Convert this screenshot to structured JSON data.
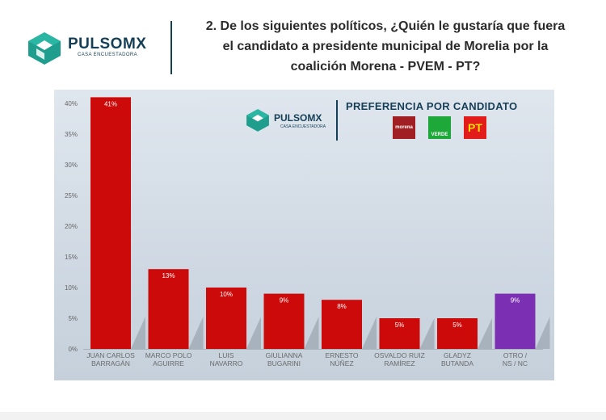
{
  "header": {
    "brand": "PULSOMX",
    "brand_sub": "CASA ENCUESTADORA",
    "question_lines": [
      "2. De los siguientes políticos, ¿Quién le gustaría que fuera",
      "el candidato a presidente municipal de Morelia por la",
      "coalición Morena - PVEM - PT?"
    ]
  },
  "panel": {
    "brand": "PULSOMX",
    "brand_sub": "CASA ENCUESTADORA",
    "title": "PREFERENCIA POR CANDIDATO",
    "parties": [
      "morena",
      "VERDE",
      "PT"
    ]
  },
  "colors": {
    "bar": "#cc0a0a",
    "bar_other": "#7b2fb3",
    "brand": "#153f57"
  },
  "chart_data": {
    "type": "bar",
    "title": "PREFERENCIA POR CANDIDATO",
    "categories": [
      [
        "JUAN CARLOS",
        "BARRAGÁN"
      ],
      [
        "MARCO POLO",
        "AGUIRRE"
      ],
      [
        "LUIS",
        "NAVARRO"
      ],
      [
        "GIULIANNA",
        "BUGARINI"
      ],
      [
        "ERNESTO",
        "NÚÑEZ"
      ],
      [
        "OSVALDO RUIZ",
        "RAMÍREZ"
      ],
      [
        "GLADYZ",
        "BUTANDA"
      ],
      [
        "OTRO /",
        "NS / NC"
      ]
    ],
    "values": [
      41,
      13,
      10,
      9,
      8,
      5,
      5,
      9
    ],
    "value_labels": [
      "41%",
      "13%",
      "10%",
      "9%",
      "8%",
      "5%",
      "5%",
      "9%"
    ],
    "yticks": [
      "0%",
      "5%",
      "10%",
      "15%",
      "20%",
      "25%",
      "30%",
      "35%",
      "40%"
    ],
    "ylim": [
      0,
      40
    ],
    "grid": false
  }
}
